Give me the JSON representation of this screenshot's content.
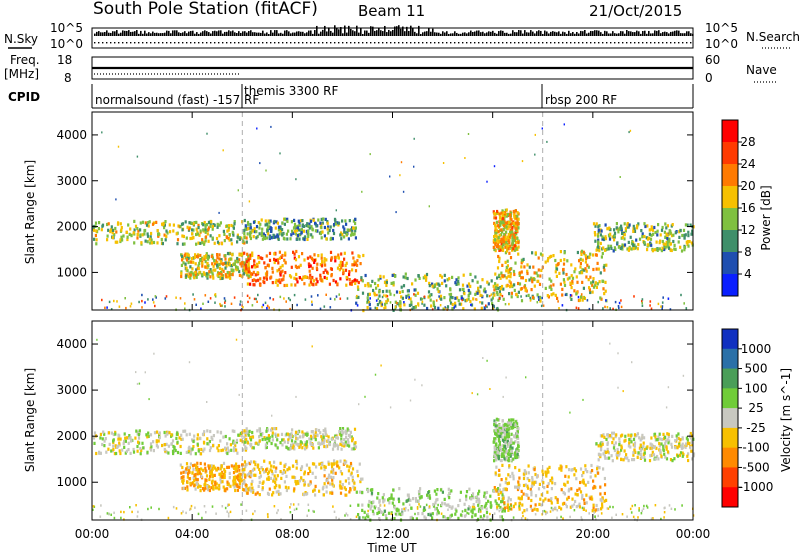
{
  "header": {
    "station": "South Pole Station (fitACF)",
    "beam": "Beam 11",
    "date": "21/Oct/2015"
  },
  "panels": {
    "nsky_label": "N.Sky",
    "nsearch_label": "N.Search",
    "nsky_top": "10^5",
    "nsky_bottom": "10^0",
    "nsearch_top": "10^5",
    "nsearch_bottom": "10^0",
    "freq_label": "Freq.",
    "freq_unit": "[MHz]",
    "freq_top": "18",
    "freq_bottom": "8",
    "nave_label": "Nave",
    "nave_top": "60",
    "nave_bottom": "0",
    "cpid_label": "CPID",
    "cpid_segments": [
      {
        "label": "normalsound (fast)  -157 RF",
        "start": "00:00"
      },
      {
        "label": "themis 3300 RF",
        "start": "06:00"
      },
      {
        "label": "rbsp 200 RF",
        "start": "18:00"
      }
    ]
  },
  "power_colorbar": {
    "label": "Power [dB]",
    "ticks": [
      "4",
      "8",
      "12",
      "16",
      "20",
      "24",
      "28"
    ],
    "colors": [
      "#0a1fff",
      "#1f4fb0",
      "#3f8f6a",
      "#7fc040",
      "#f6c000",
      "#ff7a00",
      "#ff3a00",
      "#ff0000"
    ]
  },
  "velocity_colorbar": {
    "label": "Velocity [m s^-1]",
    "ticks": [
      "1000",
      "500",
      "100",
      "25",
      "-25",
      "-100",
      "-500",
      "-1000"
    ],
    "colors": [
      "#1030c0",
      "#2a70a8",
      "#4a9e58",
      "#70cc38",
      "#c8c8c0",
      "#f7c000",
      "#ff8a00",
      "#ff4000",
      "#ff0000"
    ]
  },
  "axes": {
    "ylabel": "Slant Range [km]",
    "xlabel": "Time UT",
    "yticks": [
      "1000",
      "2000",
      "3000",
      "4000"
    ],
    "xticks": [
      "00:00",
      "04:00",
      "08:00",
      "12:00",
      "16:00",
      "20:00",
      "00:00"
    ]
  },
  "chart_data": {
    "type": "heatmap",
    "title": "South Pole Station (fitACF)  Beam 11  21/Oct/2015",
    "xlabel": "Time UT",
    "ylabel": "Slant Range [km]",
    "xlim_hours": [
      0,
      24
    ],
    "ylim_km": [
      180,
      4500
    ],
    "series": [
      {
        "name": "Power [dB]",
        "clim": [
          0,
          30
        ],
        "regions": [
          {
            "t0": 0.0,
            "t1": 6.2,
            "r0": 1650,
            "r1": 2150,
            "value": 14
          },
          {
            "t0": 6.0,
            "t1": 10.5,
            "r0": 1750,
            "r1": 2200,
            "value": 10
          },
          {
            "t0": 3.5,
            "t1": 6.3,
            "r0": 900,
            "r1": 1450,
            "value": 16
          },
          {
            "t0": 6.0,
            "t1": 10.8,
            "r0": 750,
            "r1": 1500,
            "value": 22
          },
          {
            "t0": 10.5,
            "t1": 16.5,
            "r0": 200,
            "r1": 1000,
            "value": 12
          },
          {
            "t0": 16.0,
            "t1": 20.5,
            "r0": 400,
            "r1": 1500,
            "value": 16
          },
          {
            "t0": 20.0,
            "t1": 24.0,
            "r0": 1500,
            "r1": 2100,
            "value": 12
          },
          {
            "t0": 16.0,
            "t1": 17.0,
            "r0": 1500,
            "r1": 2400,
            "value": 18
          }
        ]
      },
      {
        "name": "Velocity [m s^-1]",
        "clim": [
          -1000,
          1000
        ],
        "regions": [
          {
            "t0": 0.0,
            "t1": 6.2,
            "r0": 1650,
            "r1": 2150,
            "value": 0
          },
          {
            "t0": 6.0,
            "t1": 10.5,
            "r0": 1750,
            "r1": 2200,
            "value": 0
          },
          {
            "t0": 3.5,
            "t1": 6.3,
            "r0": 850,
            "r1": 1450,
            "value": -300
          },
          {
            "t0": 6.0,
            "t1": 10.8,
            "r0": 750,
            "r1": 1500,
            "value": -200
          },
          {
            "t0": 10.5,
            "t1": 16.5,
            "r0": 200,
            "r1": 900,
            "value": 150
          },
          {
            "t0": 16.0,
            "t1": 20.5,
            "r0": 400,
            "r1": 1400,
            "value": -200
          },
          {
            "t0": 20.0,
            "t1": 24.0,
            "r0": 1500,
            "r1": 2100,
            "value": 0
          },
          {
            "t0": 16.0,
            "t1": 17.0,
            "r0": 1500,
            "r1": 2400,
            "value": 200
          }
        ]
      }
    ]
  }
}
